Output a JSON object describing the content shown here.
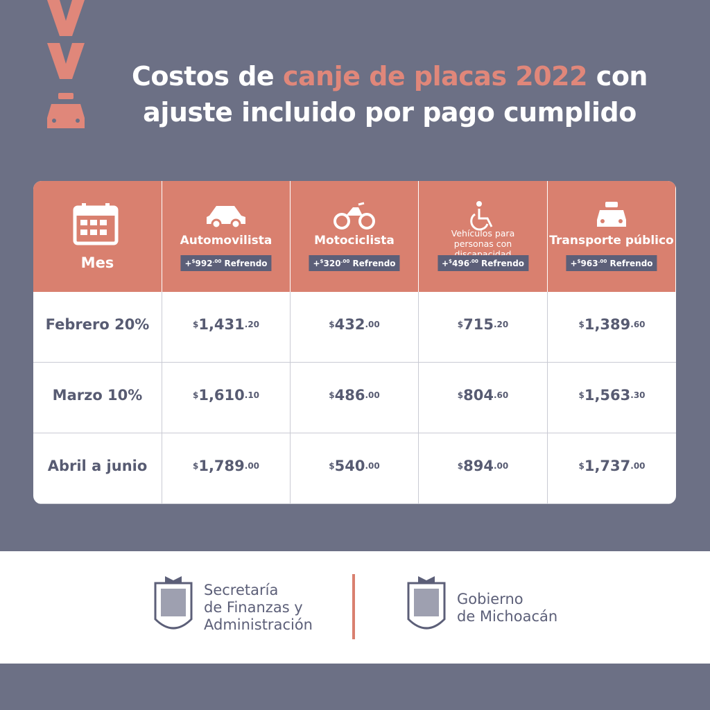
{
  "header": {
    "title": {
      "start": "Costos de",
      "highlight": "canje de placas 2022",
      "end": "con",
      "line2": "ajuste incluido por pago cumplido"
    }
  },
  "table": {
    "month_header": "Mes",
    "columns": [
      {
        "name": "Automovilista",
        "fee": {
          "prefix": "+",
          "currency": "$",
          "amount": "992",
          "cents": ".00",
          "label": "Refrendo"
        }
      },
      {
        "name": "Motociclista",
        "fee": {
          "prefix": "+",
          "currency": "$",
          "amount": "320",
          "cents": ".00",
          "label": "Refrendo"
        }
      },
      {
        "name": "Vehículos para personas con discapacidad",
        "fee": {
          "prefix": "+",
          "currency": "$",
          "amount": "496",
          "cents": ".00",
          "label": "Refrendo"
        }
      },
      {
        "name": "Transporte público",
        "fee": {
          "prefix": "+",
          "currency": "$",
          "amount": "963",
          "cents": ".00",
          "label": "Refrendo"
        }
      }
    ],
    "rows": [
      {
        "month": "Febrero 20%",
        "prices": [
          {
            "currency": "$",
            "amount": "1,431",
            "cents": ".20"
          },
          {
            "currency": "$",
            "amount": "432",
            "cents": ".00"
          },
          {
            "currency": "$",
            "amount": "715",
            "cents": ".20"
          },
          {
            "currency": "$",
            "amount": "1,389",
            "cents": ".60"
          }
        ]
      },
      {
        "month": "Marzo 10%",
        "prices": [
          {
            "currency": "$",
            "amount": "1,610",
            "cents": ".10"
          },
          {
            "currency": "$",
            "amount": "486",
            "cents": ".00"
          },
          {
            "currency": "$",
            "amount": "804",
            "cents": ".60"
          },
          {
            "currency": "$",
            "amount": "1,563",
            "cents": ".30"
          }
        ]
      },
      {
        "month": "Abril a junio",
        "prices": [
          {
            "currency": "$",
            "amount": "1,789",
            "cents": ".00"
          },
          {
            "currency": "$",
            "amount": "540",
            "cents": ".00"
          },
          {
            "currency": "$",
            "amount": "894",
            "cents": ".00"
          },
          {
            "currency": "$",
            "amount": "1,737",
            "cents": ".00"
          }
        ]
      }
    ]
  },
  "footer": {
    "left_org": [
      "Secretaría",
      "de Finanzas y",
      "Administración"
    ],
    "right_org": [
      "Gobierno",
      "de Michoacán"
    ]
  }
}
